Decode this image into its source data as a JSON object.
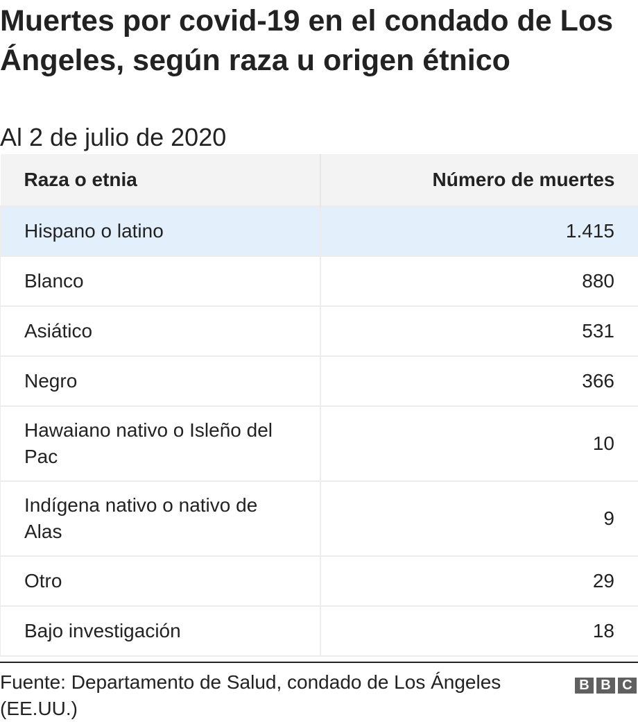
{
  "title": "Muertes por covid-19 en el condado de Los Ángeles, según raza u origen étnico",
  "subtitle": "Al 2 de julio de 2020",
  "chart_data": {
    "type": "table",
    "columns": [
      "Raza o etnia",
      "Número de muertes"
    ],
    "rows": [
      {
        "label": "Hispano o latino",
        "value": "1.415"
      },
      {
        "label": "Blanco",
        "value": "880"
      },
      {
        "label": "Asiático",
        "value": "531"
      },
      {
        "label": "Negro",
        "value": "366"
      },
      {
        "label": "Hawaiano nativo o Isleño del Pac",
        "value": "10"
      },
      {
        "label": "Indígena nativo o nativo de Alas",
        "value": "9"
      },
      {
        "label": "Otro",
        "value": "29"
      },
      {
        "label": "Bajo investigación",
        "value": "18"
      }
    ],
    "highlight_color": "#e3f0fb",
    "header_color": "#f3f3f3"
  },
  "footer": {
    "source": "Fuente: Departamento de Salud, condado de Los Ángeles (EE.UU.)",
    "logo_letters": [
      "B",
      "B",
      "C"
    ]
  }
}
